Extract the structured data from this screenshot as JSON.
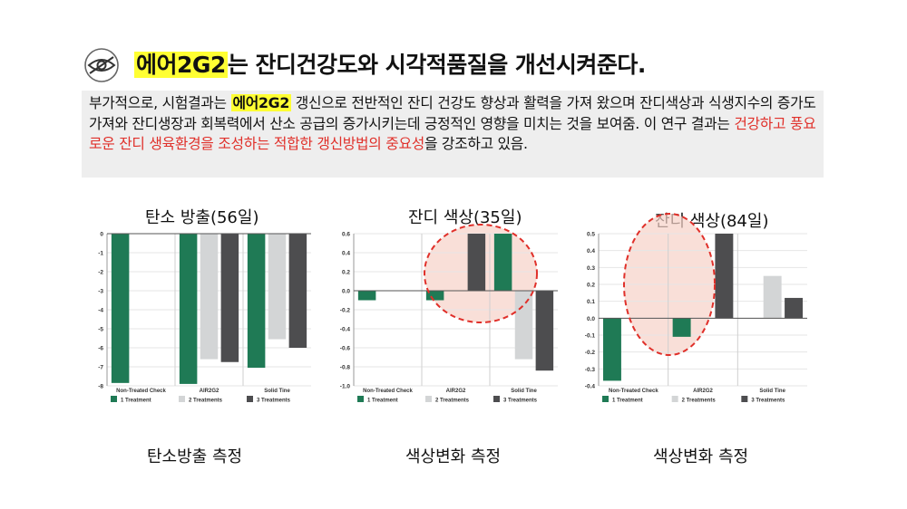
{
  "title": {
    "highlight": "에어2G2",
    "rest": "는 잔디건강도와 시각적품질을 개선시켜준다."
  },
  "description": {
    "p1": "부가적으로, 시험결과는 ",
    "highlight": "에어2G2",
    "p2": " 갱신으로  전반적인 잔디 건강도 향상과 활력을 가져 왔으며 잔디색상과 식생지수의 증가도 가져와 잔디생장과 회복력에서 산소 공급의 증가시키는데 긍정적인 영향을 미치는 것을 보여줌. 이 연구 결과는 ",
    "red": "건강하고 풍요로운 잔디 생육환경을 조성하는 적합한 갱신방법의 중요성",
    "p3": "을 강조하고 있음."
  },
  "icons": {
    "eye": "eye-icon"
  },
  "colors": {
    "series": [
      "#1f7a55",
      "#d3d5d6",
      "#4d4d4f"
    ],
    "highlight": "#ffff33",
    "accent_red": "#e0302a",
    "ellipse_fill": "#f6d2c8"
  },
  "chart_data": [
    {
      "type": "bar",
      "panel_title": "탄소 방출(56일)",
      "caption": "탄소방출 측정",
      "categories": [
        "Non-Treated Check",
        "AIR2G2",
        "Solid Tine"
      ],
      "series": [
        {
          "name": "1 Treatment",
          "values": [
            -7.85,
            -7.9,
            -7.05
          ]
        },
        {
          "name": "2 Treatments",
          "values": [
            null,
            -6.6,
            -5.55
          ]
        },
        {
          "name": "3 Treatments",
          "values": [
            null,
            -6.75,
            -6.0
          ]
        }
      ],
      "ylim": [
        -8,
        0
      ],
      "yticks": [
        0,
        -1,
        -2,
        -3,
        -4,
        -5,
        -6,
        -7,
        -8
      ],
      "tick_decimals": 0,
      "grid": true,
      "legend": "bottom"
    },
    {
      "type": "bar",
      "panel_title": "잔디 색상(35일)",
      "caption": "색상변화 측정",
      "categories": [
        "Non-Treated Check",
        "AIR2G2",
        "Solid Tine"
      ],
      "series": [
        {
          "name": "1 Treatment",
          "values": [
            -0.1,
            -0.1,
            0.6
          ]
        },
        {
          "name": "2 Treatments",
          "values": [
            null,
            null,
            -0.72
          ]
        },
        {
          "name": "3 Treatments",
          "values": [
            null,
            0.6,
            -0.84
          ]
        }
      ],
      "ylim": [
        -1.0,
        0.6
      ],
      "yticks": [
        0.6,
        0.4,
        0.2,
        0.0,
        -0.2,
        -0.4,
        -0.6,
        -0.8,
        -1.0
      ],
      "tick_decimals": 1,
      "grid": true,
      "legend": "bottom"
    },
    {
      "type": "bar",
      "panel_title": "잔디 색상(84일)",
      "caption": "색상변화 측정",
      "categories": [
        "Non-Treated Check",
        "AIR2G2",
        "Solid Tine"
      ],
      "series": [
        {
          "name": "1 Treatment",
          "values": [
            -0.37,
            -0.11,
            null
          ]
        },
        {
          "name": "2 Treatments",
          "values": [
            null,
            null,
            0.25
          ]
        },
        {
          "name": "3 Treatments",
          "values": [
            null,
            0.5,
            0.12
          ]
        }
      ],
      "ylim": [
        -0.4,
        0.5
      ],
      "yticks": [
        0.5,
        0.4,
        0.3,
        0.2,
        0.1,
        0.0,
        -0.1,
        -0.2,
        -0.3,
        -0.4
      ],
      "tick_decimals": 1,
      "grid": true,
      "legend": "bottom"
    }
  ]
}
